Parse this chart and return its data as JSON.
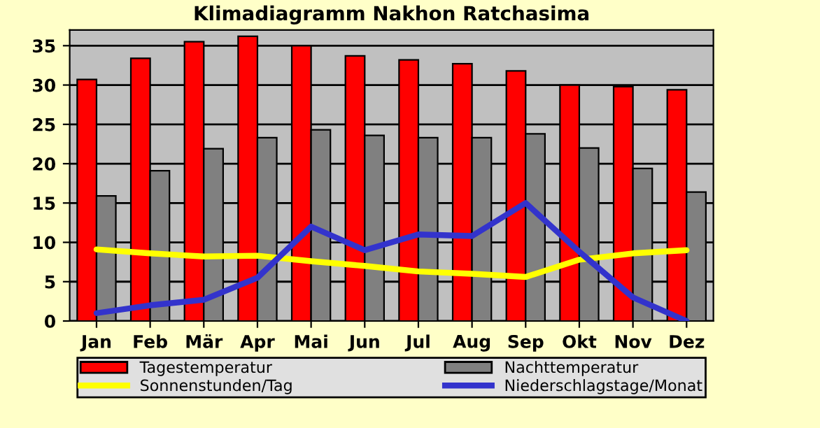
{
  "chart_data": {
    "type": "bar",
    "title": "Klimadiagramm Nakhon Ratchasima",
    "categories": [
      "Jan",
      "Feb",
      "Mär",
      "Apr",
      "Mai",
      "Jun",
      "Jul",
      "Aug",
      "Sep",
      "Okt",
      "Nov",
      "Dez"
    ],
    "series": [
      {
        "name": "Tagestemperatur",
        "color": "#ff0000",
        "values": [
          30.7,
          33.4,
          35.5,
          36.2,
          35.0,
          33.7,
          33.2,
          32.7,
          31.8,
          30.0,
          29.8,
          29.4
        ]
      },
      {
        "name": "Nachttemperatur",
        "color": "#808080",
        "values": [
          15.9,
          19.1,
          21.9,
          23.3,
          24.3,
          23.6,
          23.3,
          23.3,
          23.8,
          22.0,
          19.4,
          16.4
        ]
      },
      {
        "name": "Sonnenstunden/Tag",
        "type": "line",
        "color": "#ffff00",
        "values": [
          9.1,
          8.6,
          8.2,
          8.3,
          7.6,
          7.0,
          6.3,
          6.0,
          5.6,
          7.8,
          8.6,
          9.0
        ]
      },
      {
        "name": "Niederschlagstage/Monat",
        "type": "line",
        "color": "#3333cc",
        "values": [
          1,
          2,
          2.7,
          5.5,
          12,
          9,
          11,
          10.8,
          15,
          8.8,
          3,
          0
        ]
      }
    ],
    "ylim": [
      0,
      37
    ],
    "yticks": [
      0,
      5,
      10,
      15,
      20,
      25,
      30,
      35
    ],
    "grid": "y",
    "legend": "bottom"
  }
}
